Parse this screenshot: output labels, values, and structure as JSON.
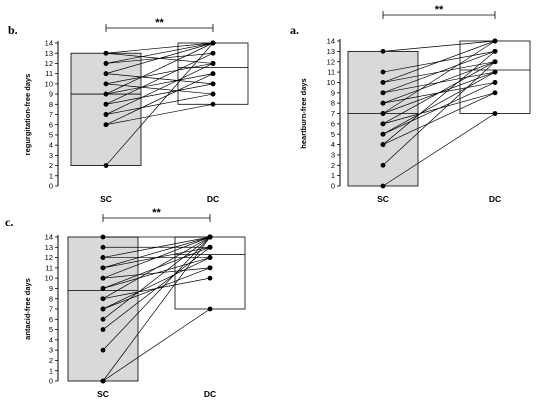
{
  "chart_data": [
    {
      "type": "box-paired-dot",
      "title": "b.",
      "ylabel": "regurgitation-free days",
      "categories": [
        "SC",
        "DC"
      ],
      "ylim": [
        0,
        14
      ],
      "yticks": [
        0,
        1,
        2,
        3,
        4,
        5,
        6,
        7,
        8,
        9,
        10,
        11,
        12,
        13,
        14
      ],
      "significance": "**",
      "boxes": [
        {
          "category": "SC",
          "min": 2,
          "median": 9,
          "max": 13,
          "fill": "#d9d9d9"
        },
        {
          "category": "DC",
          "min": 8,
          "median": 11.6,
          "max": 14,
          "fill": "#ffffff"
        }
      ],
      "pairs": [
        [
          13,
          14
        ],
        [
          13,
          12
        ],
        [
          12,
          14
        ],
        [
          12,
          13
        ],
        [
          11,
          14
        ],
        [
          11,
          10
        ],
        [
          10,
          12
        ],
        [
          10,
          9
        ],
        [
          9,
          11
        ],
        [
          9,
          14
        ],
        [
          8,
          13
        ],
        [
          8,
          10
        ],
        [
          7,
          9
        ],
        [
          7,
          12
        ],
        [
          6,
          11
        ],
        [
          6,
          8
        ],
        [
          2,
          14
        ]
      ]
    },
    {
      "type": "box-paired-dot",
      "title": "a.",
      "ylabel": "heartburn-free days",
      "categories": [
        "SC",
        "DC"
      ],
      "ylim": [
        0,
        14
      ],
      "yticks": [
        0,
        1,
        2,
        3,
        4,
        5,
        6,
        7,
        8,
        9,
        10,
        11,
        12,
        13,
        14
      ],
      "significance": "**",
      "boxes": [
        {
          "category": "SC",
          "min": 0,
          "median": 7,
          "max": 13,
          "fill": "#d9d9d9"
        },
        {
          "category": "DC",
          "min": 7,
          "median": 11.2,
          "max": 14,
          "fill": "#ffffff"
        }
      ],
      "pairs": [
        [
          13,
          14
        ],
        [
          11,
          13
        ],
        [
          10,
          14
        ],
        [
          10,
          12
        ],
        [
          9,
          13
        ],
        [
          9,
          11
        ],
        [
          8,
          12
        ],
        [
          8,
          10
        ],
        [
          7,
          14
        ],
        [
          7,
          11
        ],
        [
          6,
          12
        ],
        [
          6,
          9
        ],
        [
          5,
          11
        ],
        [
          5,
          10
        ],
        [
          4,
          13
        ],
        [
          4,
          9
        ],
        [
          2,
          12
        ],
        [
          0,
          7
        ]
      ]
    },
    {
      "type": "box-paired-dot",
      "title": "c.",
      "ylabel": "antacid-free days",
      "categories": [
        "SC",
        "DC"
      ],
      "ylim": [
        0,
        14
      ],
      "yticks": [
        0,
        1,
        2,
        3,
        4,
        5,
        6,
        7,
        8,
        9,
        10,
        11,
        12,
        13,
        14
      ],
      "significance": "**",
      "boxes": [
        {
          "category": "SC",
          "min": 0,
          "median": 8.8,
          "max": 14,
          "fill": "#d9d9d9"
        },
        {
          "category": "DC",
          "min": 7,
          "median": 12.3,
          "max": 14,
          "fill": "#ffffff"
        }
      ],
      "pairs": [
        [
          14,
          14
        ],
        [
          13,
          13
        ],
        [
          12,
          14
        ],
        [
          12,
          12
        ],
        [
          11,
          14
        ],
        [
          11,
          13
        ],
        [
          10,
          11
        ],
        [
          10,
          14
        ],
        [
          9,
          12
        ],
        [
          9,
          13
        ],
        [
          8,
          14
        ],
        [
          8,
          10
        ],
        [
          7,
          12
        ],
        [
          7,
          11
        ],
        [
          6,
          14
        ],
        [
          5,
          13
        ],
        [
          3,
          14
        ],
        [
          0,
          14
        ],
        [
          0,
          7
        ]
      ]
    }
  ]
}
